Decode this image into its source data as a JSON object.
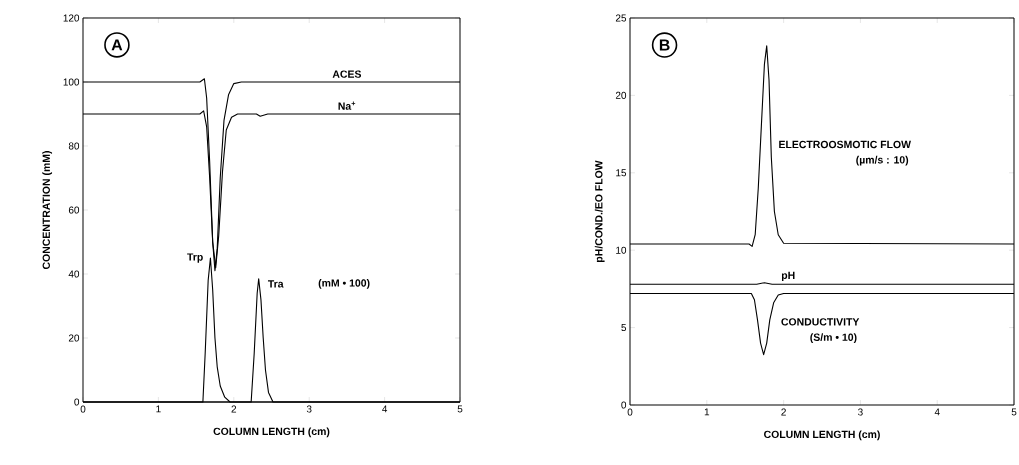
{
  "chart_data": [
    {
      "type": "line",
      "xlabel": "COLUMN LENGTH (cm)",
      "ylabel": "CONCENTRATION (mM)",
      "xlim": [
        0,
        5
      ],
      "ylim": [
        0,
        120
      ],
      "xticks": [
        0,
        1,
        2,
        3,
        4,
        5
      ],
      "yticks": [
        0,
        20,
        40,
        60,
        80,
        100,
        120
      ],
      "series": [
        {
          "name": "ACES",
          "color": "#000000",
          "x": [
            0,
            1.55,
            1.61,
            1.64,
            1.68,
            1.72,
            1.75,
            1.78,
            1.82,
            1.87,
            1.93,
            2.0,
            2.1,
            3.5,
            5
          ],
          "values": [
            100,
            100,
            101,
            95,
            75,
            50,
            41,
            48,
            70,
            88,
            96,
            99.5,
            100,
            100,
            100
          ]
        },
        {
          "name": "Na$^{+}$",
          "color": "#000000",
          "x": [
            0,
            1.55,
            1.6,
            1.64,
            1.68,
            1.72,
            1.76,
            1.8,
            1.85,
            1.9,
            1.97,
            2.05,
            2.3,
            2.35,
            2.45,
            3.5,
            5
          ],
          "values": [
            90,
            90,
            91,
            86,
            70,
            50,
            42,
            52,
            72,
            85,
            89,
            90,
            90,
            89.3,
            90,
            90,
            90
          ]
        },
        {
          "name": "Trp",
          "color": "#000000",
          "x": [
            0,
            1.59,
            1.62,
            1.66,
            1.69,
            1.72,
            1.75,
            1.78,
            1.82,
            1.88,
            1.95,
            5
          ],
          "values": [
            0,
            0,
            15,
            38,
            45,
            35,
            20,
            11,
            5,
            1.5,
            0,
            0
          ]
        },
        {
          "name": "Tra",
          "color": "#000000",
          "x": [
            0,
            2.23,
            2.27,
            2.31,
            2.33,
            2.36,
            2.39,
            2.42,
            2.46,
            2.52,
            5
          ],
          "values": [
            0,
            0,
            15,
            34,
            38.5,
            32,
            20,
            10,
            3,
            0,
            0
          ]
        }
      ],
      "annotations": [
        "A",
        "(mM • 100)"
      ]
    },
    {
      "type": "line",
      "xlabel": "COLUMN LENGTH (cm)",
      "ylabel": "pH/COND./EO FLOW",
      "xlim": [
        0,
        5
      ],
      "ylim": [
        0,
        25
      ],
      "xticks": [
        0,
        1,
        2,
        3,
        4,
        5
      ],
      "yticks": [
        0,
        5,
        10,
        15,
        20,
        25
      ],
      "series": [
        {
          "name": "ELECTROOSMOTIC FLOW",
          "color": "#000000",
          "x": [
            0,
            1.55,
            1.59,
            1.63,
            1.67,
            1.71,
            1.75,
            1.78,
            1.81,
            1.84,
            1.88,
            1.93,
            2.0,
            5
          ],
          "values": [
            10.4,
            10.4,
            10.25,
            11,
            14,
            18,
            22,
            23.2,
            21,
            16,
            12.5,
            11,
            10.45,
            10.4
          ]
        },
        {
          "name": "pH",
          "color": "#000000",
          "x": [
            0,
            1.65,
            1.75,
            1.85,
            5
          ],
          "values": [
            7.8,
            7.8,
            7.9,
            7.8,
            7.8
          ]
        },
        {
          "name": "CONDUCTIVITY",
          "color": "#000000",
          "x": [
            0,
            1.58,
            1.62,
            1.66,
            1.7,
            1.74,
            1.78,
            1.82,
            1.87,
            1.93,
            2.0,
            5
          ],
          "values": [
            7.2,
            7.2,
            6.8,
            5.5,
            4,
            3.25,
            4,
            5.5,
            6.6,
            7.1,
            7.2,
            7.2
          ]
        }
      ],
      "annotations": [
        "B",
        "(µm/s : 10)",
        "(S/m • 10)"
      ]
    }
  ]
}
